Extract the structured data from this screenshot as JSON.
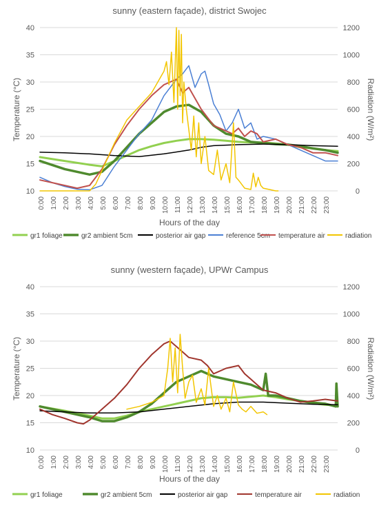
{
  "chart_data": [
    {
      "type": "line",
      "title": "sunny (eastern façade), district Swojec",
      "xlabel": "Hours of the day",
      "ylabel": "Temperature  (°C)",
      "y2label": "Radiation (W/m²)",
      "xticks": [
        "0:00",
        "1:00",
        "2:00",
        "3:00",
        "4:00",
        "5:00",
        "6:00",
        "7:00",
        "8:00",
        "9:00",
        "10:00",
        "11:00",
        "12:00",
        "13:00",
        "14:00",
        "15:00",
        "16:00",
        "17:00",
        "18:00",
        "19:00",
        "20:00",
        "21:00",
        "22:00",
        "23:00"
      ],
      "ylim": [
        10,
        40
      ],
      "yticks": [
        10,
        15,
        20,
        25,
        30,
        35,
        40
      ],
      "y2lim": [
        0,
        1200
      ],
      "y2ticks": [
        0,
        200,
        400,
        600,
        800,
        1000,
        1200
      ],
      "legend_position": "bottom",
      "series": [
        {
          "name": "gr1 foliage",
          "color": "#92d050",
          "width": 3,
          "axis": "left",
          "x": [
            0,
            2,
            4,
            5,
            6,
            7,
            8,
            9,
            10,
            11,
            12,
            13,
            14,
            15,
            16,
            17,
            18,
            19,
            20,
            21,
            22,
            23,
            24
          ],
          "y": [
            16.2,
            15.5,
            14.8,
            14.5,
            15.5,
            16.5,
            17.5,
            18.2,
            18.8,
            19.2,
            19.5,
            19.5,
            19.4,
            19.2,
            19.0,
            18.9,
            18.9,
            18.7,
            18.5,
            18.0,
            17.8,
            17.5,
            17.3
          ]
        },
        {
          "name": "gr2 ambient 5cm",
          "color": "#4f8a2e",
          "width": 3.5,
          "axis": "left",
          "x": [
            0,
            2,
            4,
            5,
            6,
            7,
            8,
            9,
            10,
            11,
            12,
            13,
            14,
            15,
            16,
            17,
            18,
            19,
            20,
            21,
            22,
            23,
            24
          ],
          "y": [
            15.5,
            14.0,
            13.0,
            13.5,
            15.5,
            18.0,
            20.5,
            22.5,
            24.5,
            25.5,
            25.8,
            24.5,
            22.0,
            20.5,
            20.0,
            19.0,
            18.8,
            18.6,
            18.5,
            18.2,
            17.8,
            17.5,
            17.0
          ]
        },
        {
          "name": "posterior air gap",
          "color": "#000000",
          "width": 1.5,
          "axis": "left",
          "x": [
            0,
            2,
            4,
            6,
            8,
            10,
            12,
            13,
            14,
            16,
            18,
            20,
            22,
            24
          ],
          "y": [
            17.1,
            17.0,
            16.8,
            16.5,
            16.3,
            16.8,
            17.5,
            18.0,
            18.3,
            18.5,
            18.6,
            18.5,
            18.3,
            18.2
          ]
        },
        {
          "name": "reference 5cm",
          "color": "#4a7fd4",
          "width": 1.5,
          "axis": "left",
          "x": [
            0,
            1,
            2,
            3,
            4,
            5,
            6,
            7,
            8,
            9,
            10,
            10.5,
            11,
            11.5,
            12,
            12.5,
            13,
            13.3,
            13.6,
            14,
            14.5,
            15,
            15.5,
            16,
            16.5,
            17,
            17.5,
            18,
            19,
            20,
            21,
            22,
            23,
            24
          ],
          "y": [
            12.5,
            11.5,
            10.8,
            10.3,
            10.2,
            11.0,
            14.5,
            17.5,
            20.5,
            23.0,
            27.5,
            29.0,
            30.5,
            31.5,
            33.0,
            29.0,
            31.5,
            32.0,
            29.5,
            26.0,
            24.0,
            21.0,
            22.5,
            25.0,
            21.5,
            22.5,
            19.5,
            20.0,
            19.5,
            18.5,
            17.5,
            16.5,
            15.5,
            15.5
          ]
        },
        {
          "name": "temperature air",
          "color": "#c0504d",
          "width": 2,
          "axis": "left",
          "x": [
            0,
            1,
            2,
            3,
            4,
            5,
            6,
            7,
            8,
            9,
            10,
            10.5,
            11,
            11.5,
            12,
            12.5,
            13,
            13.5,
            14,
            14.5,
            15,
            15.5,
            16,
            16.5,
            17,
            17.5,
            18,
            19,
            20,
            21,
            22,
            23,
            24
          ],
          "y": [
            12.0,
            11.5,
            11.0,
            10.5,
            11.0,
            14.0,
            18.5,
            22.0,
            25.0,
            27.5,
            29.5,
            30.0,
            30.5,
            28.0,
            29.0,
            27.0,
            25.0,
            23.5,
            22.0,
            21.5,
            21.0,
            20.5,
            21.5,
            20.0,
            21.0,
            20.5,
            19.0,
            19.5,
            18.5,
            18.0,
            17.0,
            17.0,
            16.5
          ]
        },
        {
          "name": "radiation",
          "color": "#f2c500",
          "width": 1.5,
          "axis": "right",
          "x": [
            0,
            4,
            4.5,
            5,
            5.5,
            6,
            7,
            8,
            9,
            9.5,
            10,
            10.2,
            10.4,
            10.6,
            10.8,
            11,
            11.1,
            11.2,
            11.3,
            11.4,
            11.5,
            11.6,
            11.8,
            12,
            12.2,
            12.4,
            12.6,
            12.8,
            13,
            13.3,
            13.6,
            14,
            14.3,
            14.6,
            15,
            15.3,
            15.6,
            15.8,
            16,
            16.5,
            17,
            17.2,
            17.4,
            17.6,
            17.8,
            18,
            18.5,
            19,
            19.2
          ],
          "y": [
            0,
            0,
            50,
            150,
            250,
            350,
            520,
            620,
            720,
            800,
            880,
            950,
            780,
            1020,
            650,
            1200,
            600,
            1180,
            700,
            1150,
            500,
            800,
            600,
            450,
            300,
            550,
            250,
            500,
            200,
            400,
            150,
            120,
            300,
            80,
            200,
            60,
            500,
            100,
            80,
            20,
            10,
            130,
            30,
            100,
            40,
            20,
            10,
            0,
            0
          ]
        }
      ]
    },
    {
      "type": "line",
      "title": "sunny (western façade), UPWr Campus",
      "xlabel": "Hours of the day",
      "ylabel": "Temperature  (°C)",
      "y2label": "Radiation (W/m²)",
      "xticks": [
        "0:00",
        "1:00",
        "2:00",
        "3:00",
        "4:00",
        "5:00",
        "6:00",
        "7:00",
        "8:00",
        "9:00",
        "10:00",
        "11:00",
        "12:00",
        "13:00",
        "14:00",
        "15:00",
        "16:00",
        "17:00",
        "18:00",
        "19:00",
        "20:00",
        "21:00",
        "22:00",
        "23:00"
      ],
      "ylim": [
        10,
        40
      ],
      "yticks": [
        10,
        15,
        20,
        25,
        30,
        35,
        40
      ],
      "y2lim": [
        0,
        1200
      ],
      "y2ticks": [
        0,
        200,
        400,
        600,
        800,
        1000,
        1200
      ],
      "legend_position": "bottom",
      "series": [
        {
          "name": "gr1 foliage",
          "color": "#92d050",
          "width": 3,
          "axis": "left",
          "x": [
            0,
            2,
            4,
            5,
            6,
            7,
            8,
            9,
            10,
            11,
            12,
            13,
            14,
            15,
            16,
            17,
            18,
            19,
            20,
            21,
            22,
            23,
            24
          ],
          "y": [
            18.0,
            17.2,
            16.3,
            15.8,
            15.8,
            16.3,
            17.0,
            17.5,
            18.0,
            18.5,
            19.0,
            19.5,
            19.7,
            19.7,
            19.6,
            19.8,
            20.0,
            19.7,
            19.3,
            19.0,
            18.6,
            18.3,
            18.2
          ]
        },
        {
          "name": "gr2 ambient 5cm",
          "color": "#4f8a2e",
          "width": 3.5,
          "axis": "left",
          "x": [
            0,
            2,
            4,
            5,
            6,
            7,
            8,
            9,
            10,
            11,
            12,
            13,
            14,
            15,
            16,
            17,
            18,
            18.2,
            18.4,
            19,
            20,
            21,
            22,
            23,
            23.85,
            23.9,
            24
          ],
          "y": [
            18.0,
            17.0,
            16.0,
            15.3,
            15.3,
            16.0,
            17.0,
            18.5,
            20.5,
            22.5,
            23.5,
            24.5,
            23.5,
            23.0,
            22.5,
            22.0,
            21.0,
            24.0,
            20.0,
            20.0,
            19.5,
            19.0,
            18.7,
            18.5,
            18.0,
            22.2,
            18.0
          ]
        },
        {
          "name": "posterior air gap",
          "color": "#000000",
          "width": 1.5,
          "axis": "left",
          "x": [
            0,
            2,
            4,
            6,
            8,
            10,
            12,
            14,
            16,
            18,
            20,
            22,
            24
          ],
          "y": [
            17.2,
            17.0,
            16.8,
            16.8,
            17.0,
            17.5,
            18.0,
            18.5,
            18.8,
            18.8,
            18.6,
            18.4,
            18.3
          ]
        },
        {
          "name": "temperature air",
          "color": "#a0352d",
          "width": 2,
          "axis": "left",
          "x": [
            0,
            1,
            2,
            3,
            3.5,
            4,
            5,
            6,
            7,
            8,
            9,
            10,
            10.5,
            11,
            11.5,
            12,
            13,
            13.5,
            14,
            15,
            16,
            16.5,
            17,
            17.5,
            18,
            19,
            20,
            21,
            22,
            23,
            24
          ],
          "y": [
            17.5,
            16.5,
            15.8,
            15.0,
            14.8,
            15.5,
            17.5,
            19.5,
            22.0,
            25.0,
            27.5,
            29.5,
            30.0,
            29.0,
            28.0,
            27.0,
            26.5,
            25.5,
            24.0,
            25.0,
            25.5,
            24.0,
            23.0,
            22.0,
            21.0,
            20.5,
            19.5,
            18.8,
            19.0,
            19.3,
            19.0
          ]
        },
        {
          "name": "radiation",
          "color": "#f2c500",
          "width": 1.5,
          "axis": "right",
          "x": [
            7,
            8,
            9,
            10,
            10.3,
            10.5,
            10.7,
            10.9,
            11.1,
            11.3,
            11.5,
            11.7,
            12,
            12.3,
            12.6,
            13,
            13.3,
            13.6,
            14,
            14.3,
            14.6,
            15,
            15.3,
            15.6,
            16,
            16.3,
            16.6,
            17,
            17.5,
            18,
            18.3
          ],
          "y": [
            300,
            320,
            350,
            400,
            600,
            820,
            500,
            750,
            420,
            850,
            600,
            380,
            500,
            550,
            350,
            450,
            330,
            600,
            320,
            400,
            300,
            380,
            280,
            500,
            330,
            300,
            280,
            320,
            270,
            280,
            260
          ]
        }
      ]
    }
  ]
}
